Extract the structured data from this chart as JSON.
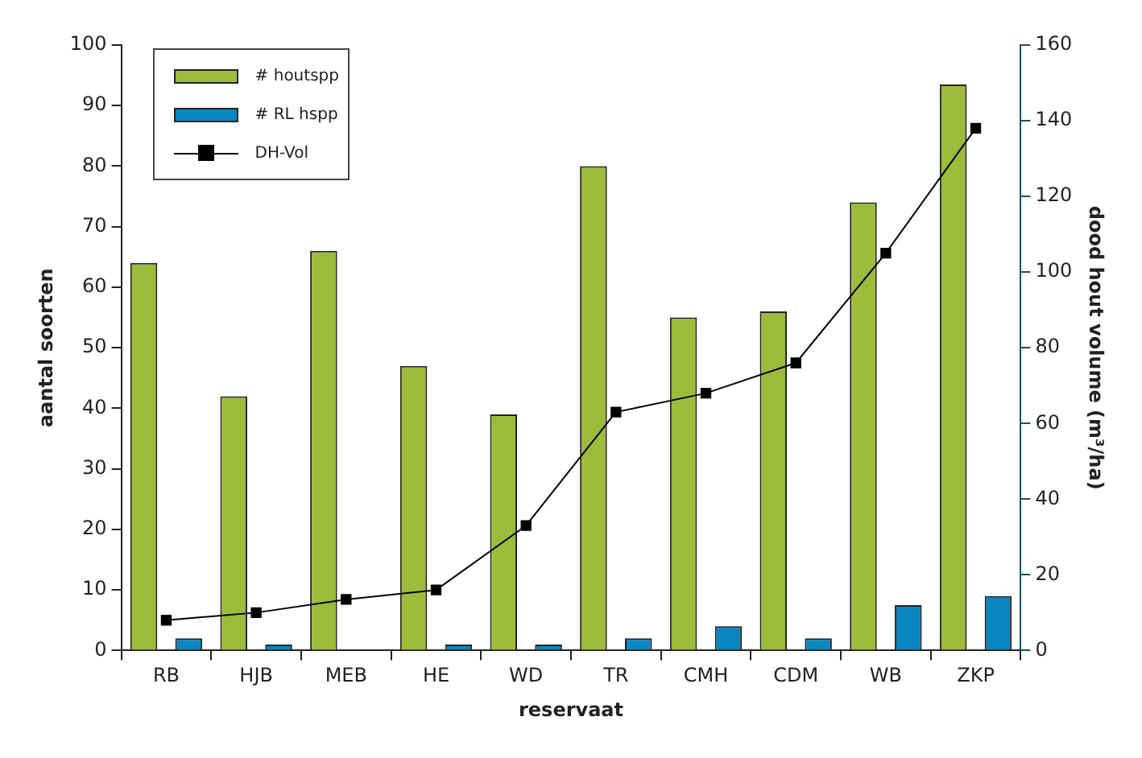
{
  "chart_data": {
    "type": "bar",
    "xlabel": "reservaat",
    "ylabel": "aantal soorten",
    "y2label": "dood hout volume (m³/ha)",
    "categories": [
      "RB",
      "HJB",
      "MEB",
      "HE",
      "WD",
      "TR",
      "CMH",
      "CDM",
      "WB",
      "ZKP"
    ],
    "series": [
      {
        "name": "# houtspp",
        "color": "#9dbb3a",
        "values": [
          64,
          42,
          66,
          47,
          39,
          80,
          55,
          56,
          74,
          93.5
        ]
      },
      {
        "name": "# RL hspp",
        "color": "#0a86c0",
        "values": [
          2,
          1,
          0,
          1,
          1,
          2,
          4,
          2,
          7.5,
          9
        ]
      },
      {
        "name": "DH-Vol",
        "type": "line",
        "axis": "y2",
        "color": "#000000",
        "marker": "square",
        "values": [
          8,
          10,
          13.5,
          16,
          33,
          63,
          68,
          76,
          105,
          138
        ]
      }
    ],
    "ylim": [
      0,
      100
    ],
    "yticks": [
      0,
      10,
      20,
      30,
      40,
      50,
      60,
      70,
      80,
      90,
      100
    ],
    "y2lim": [
      0,
      160
    ],
    "y2ticks": [
      0,
      20,
      40,
      60,
      80,
      100,
      120,
      140,
      160
    ],
    "grid": false,
    "legend": "top left"
  }
}
